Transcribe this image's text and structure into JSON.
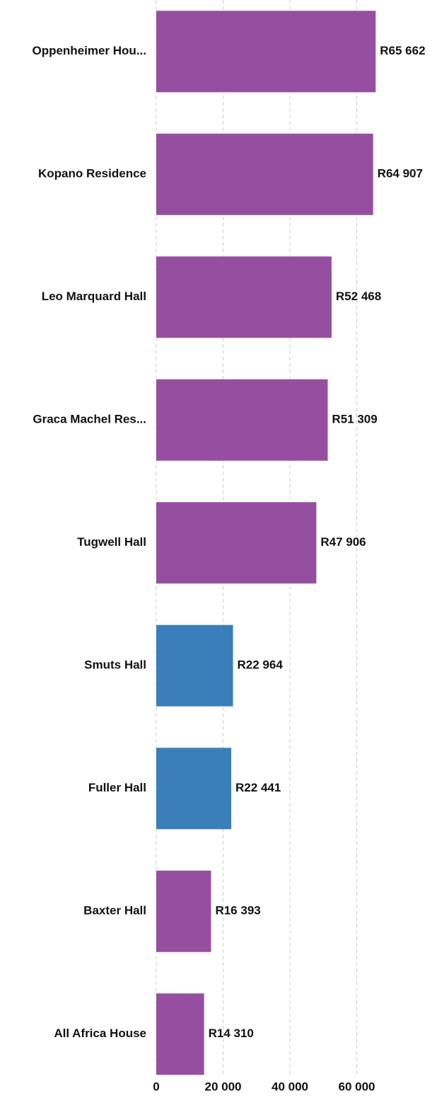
{
  "chart_data": {
    "type": "hbar",
    "categories": [
      "Oppenheimer Hou...",
      "Kopano Residence",
      "Leo Marquard Hall",
      "Graca Machel Res...",
      "Tugwell Hall",
      "Smuts Hall",
      "Fuller Hall",
      "Baxter Hall",
      "All Africa House"
    ],
    "values": [
      65662,
      64907,
      52468,
      51309,
      47906,
      22964,
      22441,
      16393,
      14310
    ],
    "value_labels": [
      "R65 662",
      "R64 907",
      "R52 468",
      "R51 309",
      "R47 906",
      "R22 964",
      "R22 441",
      "R16 393",
      "R14 310"
    ],
    "colors": [
      "#964fa0",
      "#964fa0",
      "#964fa0",
      "#964fa0",
      "#964fa0",
      "#3a7fba",
      "#3a7fba",
      "#964fa0",
      "#964fa0"
    ],
    "xlim": [
      0,
      80000
    ],
    "xticks": [
      0,
      {
        "value": 20000,
        "label": "20 000"
      },
      {
        "value": 40000,
        "label": "40 000"
      },
      {
        "value": 60000,
        "label": "60 000"
      }
    ],
    "grid": true
  }
}
